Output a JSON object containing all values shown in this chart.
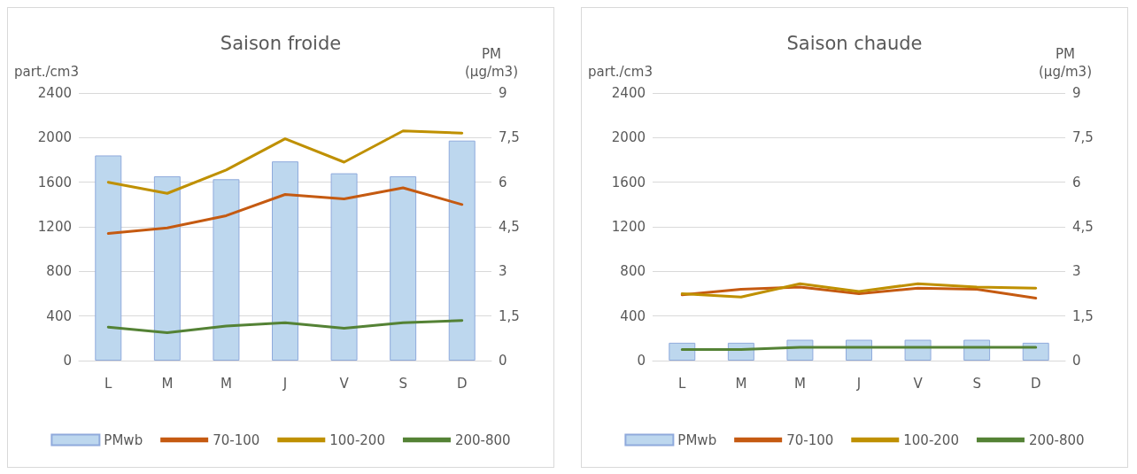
{
  "chart_data": [
    {
      "type": "bar",
      "title": "Saison froide",
      "ylabel": "part./cm3",
      "y2label": "PM (µg/m3)",
      "categories": [
        "L",
        "M",
        "M",
        "J",
        "V",
        "S",
        "D"
      ],
      "ylim": [
        0,
        2400
      ],
      "yticks": [
        0,
        400,
        800,
        1200,
        1600,
        2000,
        2400
      ],
      "y2lim": [
        0,
        9
      ],
      "y2ticks": [
        0,
        {
          "value": 1.5,
          "label": "1,5"
        },
        3,
        {
          "value": 4.5,
          "label": "4,5"
        },
        6,
        {
          "value": 7.5,
          "label": "7,5"
        },
        9
      ],
      "grid": "y",
      "legend": "bottom",
      "series": [
        {
          "name": "PMwb",
          "axis": "y2",
          "color": "#bdd7ee",
          "values": [
            6.9,
            6.2,
            6.1,
            6.7,
            6.3,
            6.2,
            7.4
          ]
        },
        {
          "name": "70-100",
          "type": "line",
          "color": "#c55a11",
          "values": [
            1140,
            1190,
            1300,
            1490,
            1450,
            1550,
            1400
          ]
        },
        {
          "name": "100-200",
          "type": "line",
          "color": "#bf9000",
          "values": [
            1600,
            1500,
            1710,
            1990,
            1780,
            2060,
            2040
          ]
        },
        {
          "name": "200-800",
          "type": "line",
          "color": "#548235",
          "values": [
            300,
            250,
            310,
            340,
            290,
            340,
            360
          ]
        }
      ]
    },
    {
      "type": "bar",
      "title": "Saison chaude",
      "ylabel": "part./cm3",
      "y2label": "PM (µg/m3)",
      "categories": [
        "L",
        "M",
        "M",
        "J",
        "V",
        "S",
        "D"
      ],
      "ylim": [
        0,
        2400
      ],
      "yticks": [
        0,
        400,
        800,
        1200,
        1600,
        2000,
        2400
      ],
      "y2lim": [
        0,
        9
      ],
      "y2ticks": [
        0,
        {
          "value": 1.5,
          "label": "1,5"
        },
        3,
        {
          "value": 4.5,
          "label": "4,5"
        },
        6,
        {
          "value": 7.5,
          "label": "7,5"
        },
        9
      ],
      "grid": "y",
      "legend": "bottom",
      "series": [
        {
          "name": "PMwb",
          "axis": "y2",
          "color": "#bdd7ee",
          "values": [
            0.6,
            0.6,
            0.7,
            0.7,
            0.7,
            0.7,
            0.6
          ]
        },
        {
          "name": "70-100",
          "type": "line",
          "color": "#c55a11",
          "values": [
            590,
            640,
            660,
            600,
            650,
            640,
            560
          ]
        },
        {
          "name": "100-200",
          "type": "line",
          "color": "#bf9000",
          "values": [
            600,
            570,
            690,
            620,
            690,
            660,
            650
          ]
        },
        {
          "name": "200-800",
          "type": "line",
          "color": "#548235",
          "values": [
            100,
            100,
            120,
            120,
            120,
            120,
            120
          ]
        }
      ]
    }
  ]
}
